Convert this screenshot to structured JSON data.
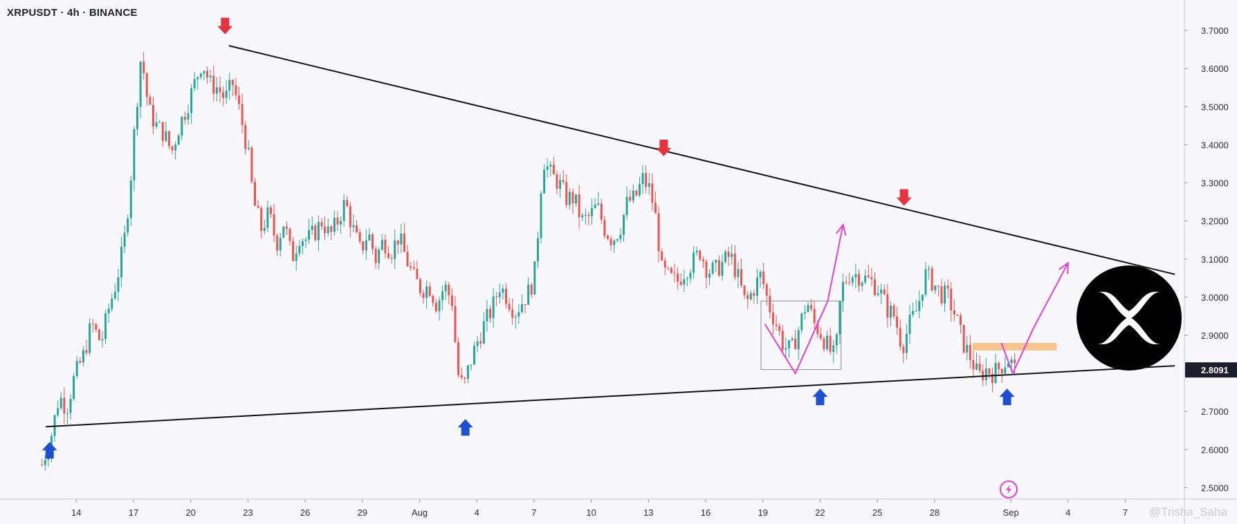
{
  "header": {
    "title": "XRPUSDT · 4h · BINANCE"
  },
  "watermark": {
    "text": "@Trisha_Saha"
  },
  "colors": {
    "up": "#26a69a",
    "down": "#ef5350",
    "trendline": "#111111",
    "projection": "#e040d9",
    "support_zone": "#f6b36a",
    "arrow_down": "#e8323c",
    "arrow_up": "#1f4fd1",
    "last_price_tag": "#1c1f2b",
    "logo_bg": "#000000"
  },
  "icons": [
    "xrp-logo-icon",
    "lightning-icon"
  ],
  "chart_data": {
    "type": "candlestick",
    "symbol": "XRPUSDT",
    "timeframe": "4h",
    "exchange": "BINANCE",
    "y_axis": {
      "ticks": [
        "2.5000",
        "2.6000",
        "2.7000",
        "2.8000",
        "2.9000",
        "3.0000",
        "3.1000",
        "3.2000",
        "3.3000",
        "3.4000",
        "3.5000",
        "3.6000",
        "3.7000"
      ],
      "last_price_label": "2.8091",
      "range": [
        2.47,
        3.78
      ]
    },
    "x_axis": {
      "ticks": [
        {
          "label": "14",
          "day": 14
        },
        {
          "label": "17",
          "day": 17
        },
        {
          "label": "20",
          "day": 20
        },
        {
          "label": "23",
          "day": 23
        },
        {
          "label": "26",
          "day": 26
        },
        {
          "label": "29",
          "day": 29
        },
        {
          "label": "Aug",
          "day": 32
        },
        {
          "label": "4",
          "day": 35
        },
        {
          "label": "7",
          "day": 38
        },
        {
          "label": "10",
          "day": 41
        },
        {
          "label": "13",
          "day": 44
        },
        {
          "label": "16",
          "day": 47
        },
        {
          "label": "19",
          "day": 50
        },
        {
          "label": "22",
          "day": 53
        },
        {
          "label": "25",
          "day": 56
        },
        {
          "label": "28",
          "day": 59
        },
        {
          "label": "Sep",
          "day": 63
        },
        {
          "label": "4",
          "day": 66
        },
        {
          "label": "7",
          "day": 69
        }
      ]
    },
    "price_path": [
      [
        12.2,
        2.56
      ],
      [
        12.7,
        2.64
      ],
      [
        13.1,
        2.74
      ],
      [
        13.5,
        2.71
      ],
      [
        13.9,
        2.79
      ],
      [
        14.4,
        2.85
      ],
      [
        14.8,
        2.93
      ],
      [
        15.3,
        2.88
      ],
      [
        15.7,
        2.97
      ],
      [
        16.1,
        3.04
      ],
      [
        16.5,
        3.14
      ],
      [
        16.8,
        3.28
      ],
      [
        17.1,
        3.47
      ],
      [
        17.4,
        3.64
      ],
      [
        17.8,
        3.49
      ],
      [
        18.2,
        3.45
      ],
      [
        18.6,
        3.43
      ],
      [
        19.0,
        3.38
      ],
      [
        19.4,
        3.45
      ],
      [
        19.8,
        3.5
      ],
      [
        20.2,
        3.56
      ],
      [
        20.6,
        3.62
      ],
      [
        21.0,
        3.56
      ],
      [
        21.4,
        3.55
      ],
      [
        21.8,
        3.52
      ],
      [
        22.2,
        3.56
      ],
      [
        22.6,
        3.48
      ],
      [
        23.0,
        3.38
      ],
      [
        23.3,
        3.25
      ],
      [
        23.7,
        3.18
      ],
      [
        24.1,
        3.22
      ],
      [
        24.5,
        3.14
      ],
      [
        24.9,
        3.2
      ],
      [
        25.3,
        3.1
      ],
      [
        25.7,
        3.16
      ],
      [
        26.1,
        3.15
      ],
      [
        26.5,
        3.17
      ],
      [
        26.9,
        3.2
      ],
      [
        27.3,
        3.16
      ],
      [
        27.7,
        3.2
      ],
      [
        28.1,
        3.25
      ],
      [
        28.5,
        3.18
      ],
      [
        28.9,
        3.12
      ],
      [
        29.3,
        3.17
      ],
      [
        29.7,
        3.1
      ],
      [
        30.1,
        3.15
      ],
      [
        30.5,
        3.12
      ],
      [
        30.9,
        3.16
      ],
      [
        31.3,
        3.1
      ],
      [
        31.7,
        3.05
      ],
      [
        32.1,
        3.02
      ],
      [
        32.5,
        3.03
      ],
      [
        32.9,
        2.98
      ],
      [
        33.3,
        3.03
      ],
      [
        33.7,
        2.99
      ],
      [
        34.0,
        2.8
      ],
      [
        34.3,
        2.76
      ],
      [
        34.6,
        2.82
      ],
      [
        35.0,
        2.88
      ],
      [
        35.4,
        2.93
      ],
      [
        35.8,
        2.97
      ],
      [
        36.2,
        3.03
      ],
      [
        36.6,
        3.0
      ],
      [
        37.0,
        2.96
      ],
      [
        37.4,
        2.99
      ],
      [
        37.8,
        3.02
      ],
      [
        38.1,
        3.08
      ],
      [
        38.3,
        3.26
      ],
      [
        38.5,
        3.36
      ],
      [
        38.9,
        3.32
      ],
      [
        39.3,
        3.3
      ],
      [
        39.7,
        3.26
      ],
      [
        40.1,
        3.26
      ],
      [
        40.5,
        3.2
      ],
      [
        40.9,
        3.21
      ],
      [
        41.3,
        3.24
      ],
      [
        41.7,
        3.18
      ],
      [
        42.1,
        3.15
      ],
      [
        42.5,
        3.18
      ],
      [
        42.9,
        3.25
      ],
      [
        43.3,
        3.26
      ],
      [
        43.7,
        3.31
      ],
      [
        44.1,
        3.28
      ],
      [
        44.4,
        3.2
      ],
      [
        44.7,
        3.07
      ],
      [
        45.1,
        3.05
      ],
      [
        45.5,
        3.04
      ],
      [
        45.9,
        3.07
      ],
      [
        46.3,
        3.09
      ],
      [
        46.7,
        3.12
      ],
      [
        47.1,
        3.07
      ],
      [
        47.5,
        3.07
      ],
      [
        47.9,
        3.09
      ],
      [
        48.3,
        3.11
      ],
      [
        48.7,
        3.05
      ],
      [
        49.1,
        2.98
      ],
      [
        49.5,
        3.02
      ],
      [
        49.9,
        3.06
      ],
      [
        50.3,
        2.98
      ],
      [
        50.7,
        2.93
      ],
      [
        51.1,
        2.87
      ],
      [
        51.5,
        2.86
      ],
      [
        51.9,
        2.92
      ],
      [
        52.3,
        2.99
      ],
      [
        52.7,
        2.93
      ],
      [
        53.1,
        2.9
      ],
      [
        53.5,
        2.86
      ],
      [
        53.8,
        2.84
      ],
      [
        54.1,
        3.02
      ],
      [
        54.5,
        3.06
      ],
      [
        54.9,
        3.06
      ],
      [
        55.3,
        3.05
      ],
      [
        55.7,
        3.04
      ],
      [
        56.1,
        3.02
      ],
      [
        56.5,
        2.97
      ],
      [
        56.9,
        2.95
      ],
      [
        57.3,
        2.87
      ],
      [
        57.7,
        2.93
      ],
      [
        58.1,
        2.97
      ],
      [
        58.5,
        3.06
      ],
      [
        58.9,
        3.04
      ],
      [
        59.3,
        3.01
      ],
      [
        59.7,
        3.0
      ],
      [
        60.1,
        2.95
      ],
      [
        60.5,
        2.88
      ],
      [
        60.9,
        2.84
      ],
      [
        61.3,
        2.79
      ],
      [
        61.7,
        2.81
      ],
      [
        62.1,
        2.8
      ],
      [
        62.5,
        2.82
      ],
      [
        62.9,
        2.84
      ],
      [
        63.2,
        2.81
      ]
    ],
    "annotations": {
      "upper_trendline": [
        [
          22.0,
          3.66
        ],
        [
          71.6,
          3.06
        ]
      ],
      "lower_trendline": [
        [
          12.4,
          2.66
        ],
        [
          71.6,
          2.82
        ]
      ],
      "support_zone": {
        "day_start": 61.0,
        "day_end": 65.4,
        "price_low": 2.86,
        "price_high": 2.88
      },
      "projection_paths": [
        [
          [
            50.1,
            2.93
          ],
          [
            51.7,
            2.8
          ],
          [
            53.4,
            2.99
          ],
          [
            54.2,
            3.19
          ]
        ],
        [
          [
            62.5,
            2.88
          ],
          [
            63.1,
            2.8
          ],
          [
            64.2,
            2.92
          ],
          [
            66.0,
            3.09
          ]
        ]
      ],
      "down_arrows": [
        [
          21.8,
          3.69
        ],
        [
          44.8,
          3.37
        ],
        [
          57.4,
          3.24
        ]
      ],
      "up_arrows": [
        [
          12.6,
          2.62
        ],
        [
          34.4,
          2.68
        ],
        [
          53.0,
          2.76
        ],
        [
          62.8,
          2.76
        ]
      ],
      "selection_box": {
        "day_start": 49.9,
        "day_end": 54.1,
        "price_low": 2.81,
        "price_high": 2.99
      }
    }
  }
}
